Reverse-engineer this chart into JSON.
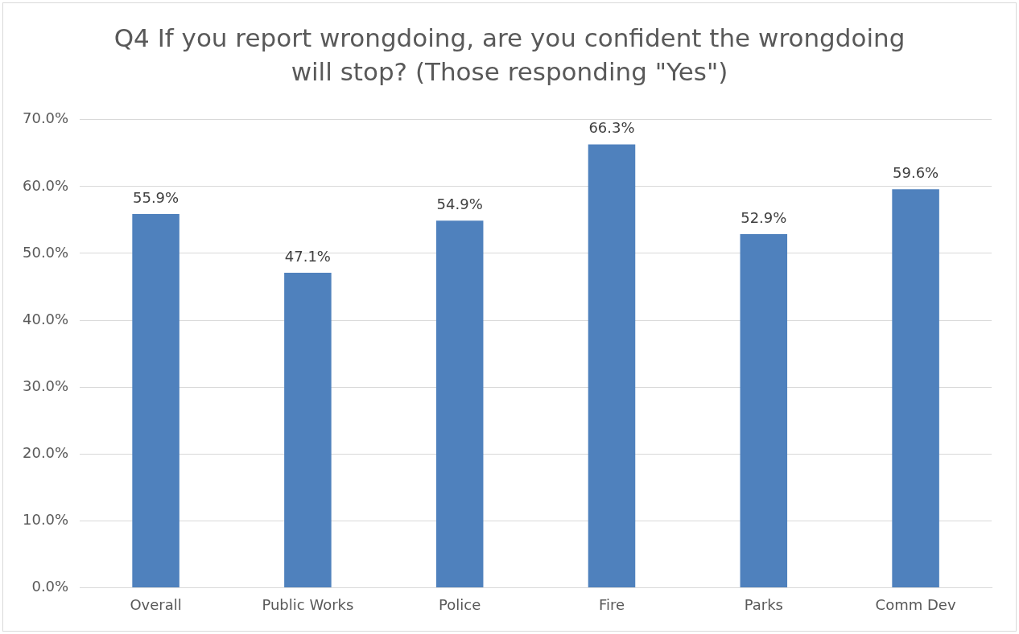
{
  "chart_data": {
    "type": "bar",
    "title": "Q4 If you report wrongdoing, are you confident the wrongdoing will stop? (Those responding \"Yes\")",
    "categories": [
      "Overall",
      "Public Works",
      "Police",
      "Fire",
      "Parks",
      "Comm Dev"
    ],
    "values": [
      55.9,
      47.1,
      54.9,
      66.3,
      52.9,
      59.6
    ],
    "value_labels": [
      "55.9%",
      "47.1%",
      "54.9%",
      "66.3%",
      "52.9%",
      "59.6%"
    ],
    "color": "#4f81bd",
    "ylim": [
      0,
      70
    ],
    "yticks": [
      {
        "value": 0,
        "label": "0.0%"
      },
      {
        "value": 10,
        "label": "10.0%"
      },
      {
        "value": 20,
        "label": "20.0%"
      },
      {
        "value": 30,
        "label": "30.0%"
      },
      {
        "value": 40,
        "label": "40.0%"
      },
      {
        "value": 50,
        "label": "50.0%"
      },
      {
        "value": 60,
        "label": "60.0%"
      },
      {
        "value": 70,
        "label": "70.0%"
      }
    ],
    "grid": "y",
    "legend": false
  }
}
